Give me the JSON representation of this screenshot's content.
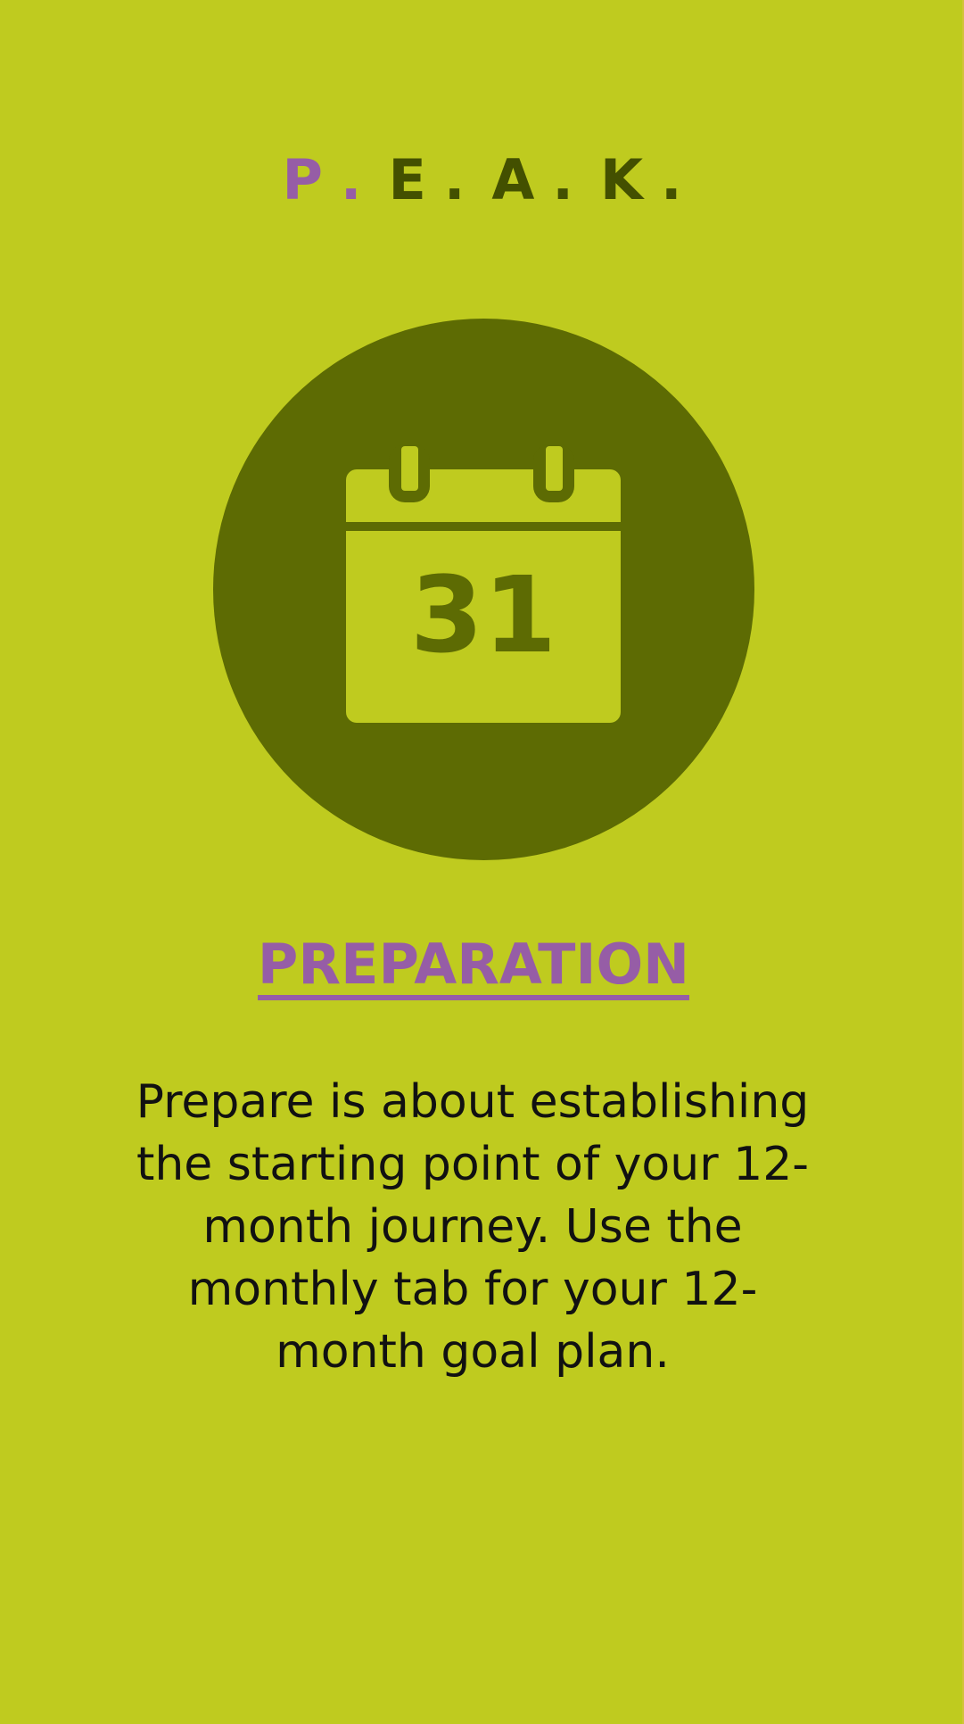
{
  "colors": {
    "background": "#BFCB1F",
    "circle": "#5D6B03",
    "accent": "#965DA6",
    "logo_dark": "#435000",
    "text": "#111111"
  },
  "logo": {
    "letters": [
      "P",
      "E",
      "A",
      "K"
    ],
    "separator": ".",
    "highlight_index": 0
  },
  "icon": {
    "name": "calendar-icon",
    "day_number": "31"
  },
  "section": {
    "title": "PREPARATION",
    "description": "Prepare is about establishing the starting point of your 12-month journey. Use the monthly tab for your 12-month goal plan."
  }
}
